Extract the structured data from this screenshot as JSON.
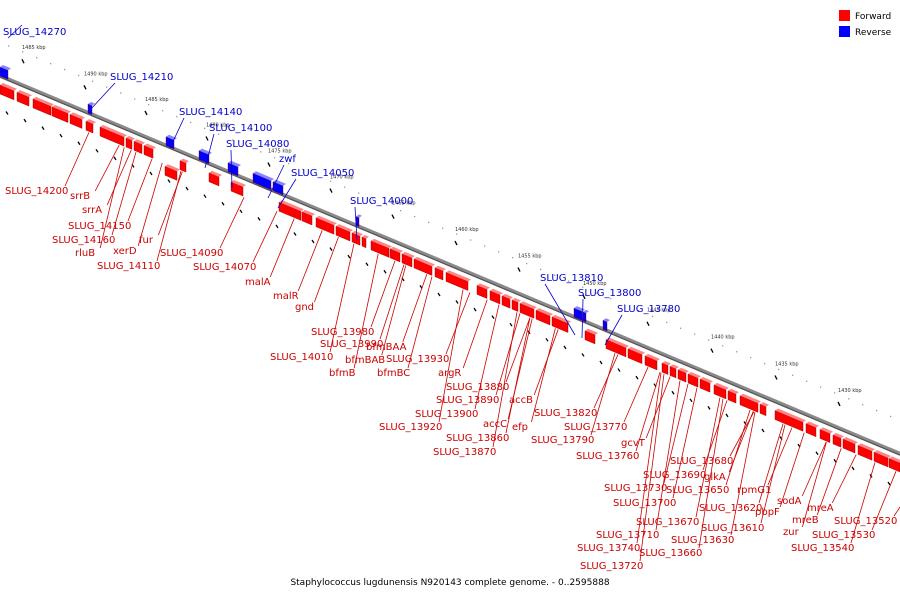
{
  "caption": "Staphylococcus lugdunensis N920143 complete genome. - 0..2595888",
  "legend": [
    {
      "label": "Forward",
      "color": "#ff0000"
    },
    {
      "label": "Reverse",
      "color": "#0000ff"
    }
  ],
  "colors": {
    "forward": "#ff0000",
    "forward_label": "#cc0000",
    "reverse": "#0000ff",
    "reverse_label": "#0000cc",
    "backbone": "#8a8a8a"
  },
  "kbp_ticks": [
    "1485 kbp",
    "1490 kbp",
    "1485 kbp",
    "1480 kbp",
    "1475 kbp",
    "1470 kbp",
    "1465 kbp",
    "1460 kbp",
    "1455 kbp",
    "1450 kbp",
    "1445 kbp",
    "1440 kbp",
    "1435 kbp",
    "1430 kbp"
  ],
  "reverse_genes": [
    "SLUG_14270",
    "SLUG_14210",
    "SLUG_14140",
    "SLUG_14100",
    "SLUG_14080",
    "zwf",
    "SLUG_14050",
    "SLUG_14000",
    "SLUG_13810",
    "SLUG_13800",
    "SLUG_13780"
  ],
  "forward_genes": [
    "SLUG_14200",
    "srrB",
    "srrA",
    "SLUG_14150",
    "SLUG_14160",
    "rluB",
    "xerD",
    "fur",
    "SLUG_14110",
    "SLUG_14090",
    "SLUG_14070",
    "malA",
    "malR",
    "gnd",
    "SLUG_13980",
    "SLUG_13990",
    "SLUG_14010",
    "bfmBAA",
    "bfmBAB",
    "bfmB",
    "SLUG_13930",
    "bfmBC",
    "argR",
    "SLUG_13880",
    "SLUG_13890",
    "SLUG_13900",
    "SLUG_13920",
    "accB",
    "accC",
    "SLUG_13860",
    "SLUG_13870",
    "SLUG_13820",
    "efp",
    "SLUG_13770",
    "SLUG_13790",
    "gcvT",
    "SLUG_13760",
    "SLUG_13680",
    "SLUG_13690",
    "SLUG_13730",
    "SLUG_13700",
    "glkA",
    "SLUG_13650",
    "SLUG_13620",
    "SLUG_13670",
    "rpmG1",
    "pbpF",
    "SLUG_13610",
    "SLUG_13630",
    "SLUG_13710",
    "SLUG_13740",
    "SLUG_13660",
    "SLUG_13720",
    "sodA",
    "zur",
    "mreB",
    "mreA",
    "SLUG_13530",
    "SLUG_13520",
    "SLUG_13540"
  ]
}
